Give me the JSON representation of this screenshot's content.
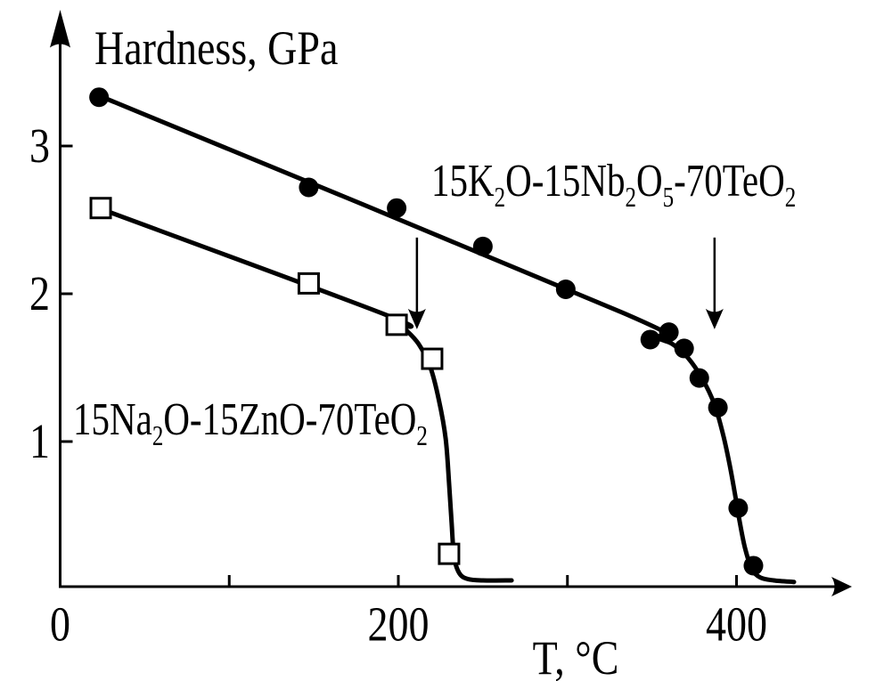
{
  "chart_data": {
    "type": "line-scatter",
    "title": "Hardness, GPa",
    "background_color": "#ffffff",
    "ink_color": "#000000",
    "x_axis": {
      "label": "T, °C",
      "range": [
        0,
        470
      ],
      "tick_marks": [
        100,
        200,
        300,
        400
      ],
      "tick_labels": [
        {
          "value": 0,
          "text": "0"
        },
        {
          "value": 200,
          "text": "200"
        },
        {
          "value": 400,
          "text": "400"
        }
      ]
    },
    "y_axis": {
      "label": "Hardness, GPa",
      "range": [
        0,
        3.9
      ],
      "tick_marks": [
        1,
        2,
        3
      ],
      "tick_labels": [
        {
          "value": 1,
          "text": "1"
        },
        {
          "value": 2,
          "text": "2"
        },
        {
          "value": 3,
          "text": "3"
        }
      ]
    },
    "series": [
      {
        "name": "15K2O-15Nb2O5-70TeO2",
        "label_markup": "15K_2O-15Nb_2O_5-70TeO_2",
        "marker": "filled-circle",
        "points": [
          [
            23,
            3.33
          ],
          [
            147,
            2.72
          ],
          [
            199,
            2.58
          ],
          [
            250,
            2.32
          ],
          [
            299,
            2.03
          ],
          [
            349,
            1.69
          ],
          [
            360,
            1.74
          ],
          [
            369,
            1.63
          ],
          [
            378,
            1.43
          ],
          [
            389,
            1.23
          ],
          [
            401,
            0.55
          ],
          [
            410,
            0.16
          ]
        ],
        "curve": [
          [
            23,
            3.34
          ],
          [
            333,
            1.87
          ],
          [
            352,
            1.71
          ],
          [
            362,
            1.66
          ],
          [
            371,
            1.57
          ],
          [
            380,
            1.42
          ],
          [
            387,
            1.25
          ],
          [
            392,
            1.05
          ],
          [
            396,
            0.84
          ],
          [
            399,
            0.65
          ],
          [
            402,
            0.45
          ],
          [
            405,
            0.28
          ],
          [
            409,
            0.14
          ],
          [
            414,
            0.08
          ],
          [
            422,
            0.06
          ],
          [
            434,
            0.05
          ]
        ]
      },
      {
        "name": "15Na2O-15ZnO-70TeO2",
        "label_markup": "15Na_2O-15ZnO-70TeO_2",
        "marker": "open-square",
        "points": [
          [
            24,
            2.58
          ],
          [
            147,
            2.07
          ],
          [
            199,
            1.79
          ],
          [
            220,
            1.56
          ],
          [
            230,
            0.24
          ]
        ],
        "curve": [
          [
            25,
            2.57
          ],
          [
            192,
            1.86
          ],
          [
            203,
            1.77
          ],
          [
            212,
            1.66
          ],
          [
            219,
            1.5
          ],
          [
            224,
            1.28
          ],
          [
            228,
            1.02
          ],
          [
            230,
            0.72
          ],
          [
            231.5,
            0.45
          ],
          [
            233,
            0.22
          ],
          [
            236,
            0.11
          ],
          [
            241,
            0.07
          ],
          [
            250,
            0.06
          ],
          [
            267,
            0.06
          ]
        ]
      }
    ],
    "annotations": {
      "transition_arrows": [
        {
          "x_value": 211,
          "y_from": 2.38,
          "y_to": 1.76
        },
        {
          "x_value": 387,
          "y_from": 2.38,
          "y_to": 1.76
        }
      ]
    }
  }
}
